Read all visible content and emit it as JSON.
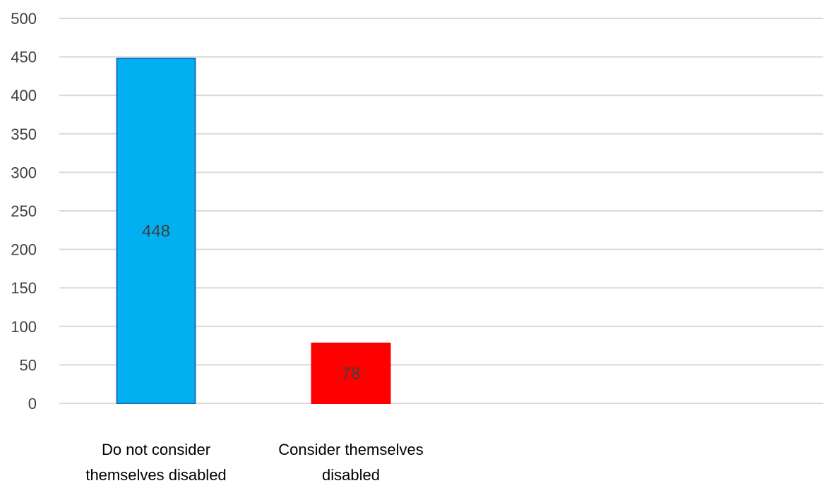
{
  "chart_data": {
    "type": "bar",
    "categories": [
      [
        "Do not consider",
        "themselves disabled"
      ],
      [
        "Consider themselves",
        "disabled"
      ]
    ],
    "values": [
      448,
      78
    ],
    "bar_colors": [
      "#00b0f0",
      "#ff0000"
    ],
    "bar_stroke_colors": [
      "#1f6fbf",
      "#ff0000"
    ],
    "ylim": [
      0,
      500
    ],
    "yticks": [
      0,
      50,
      100,
      150,
      200,
      250,
      300,
      350,
      400,
      450,
      500
    ],
    "grid": true,
    "title": "",
    "xlabel": "",
    "ylabel": ""
  }
}
